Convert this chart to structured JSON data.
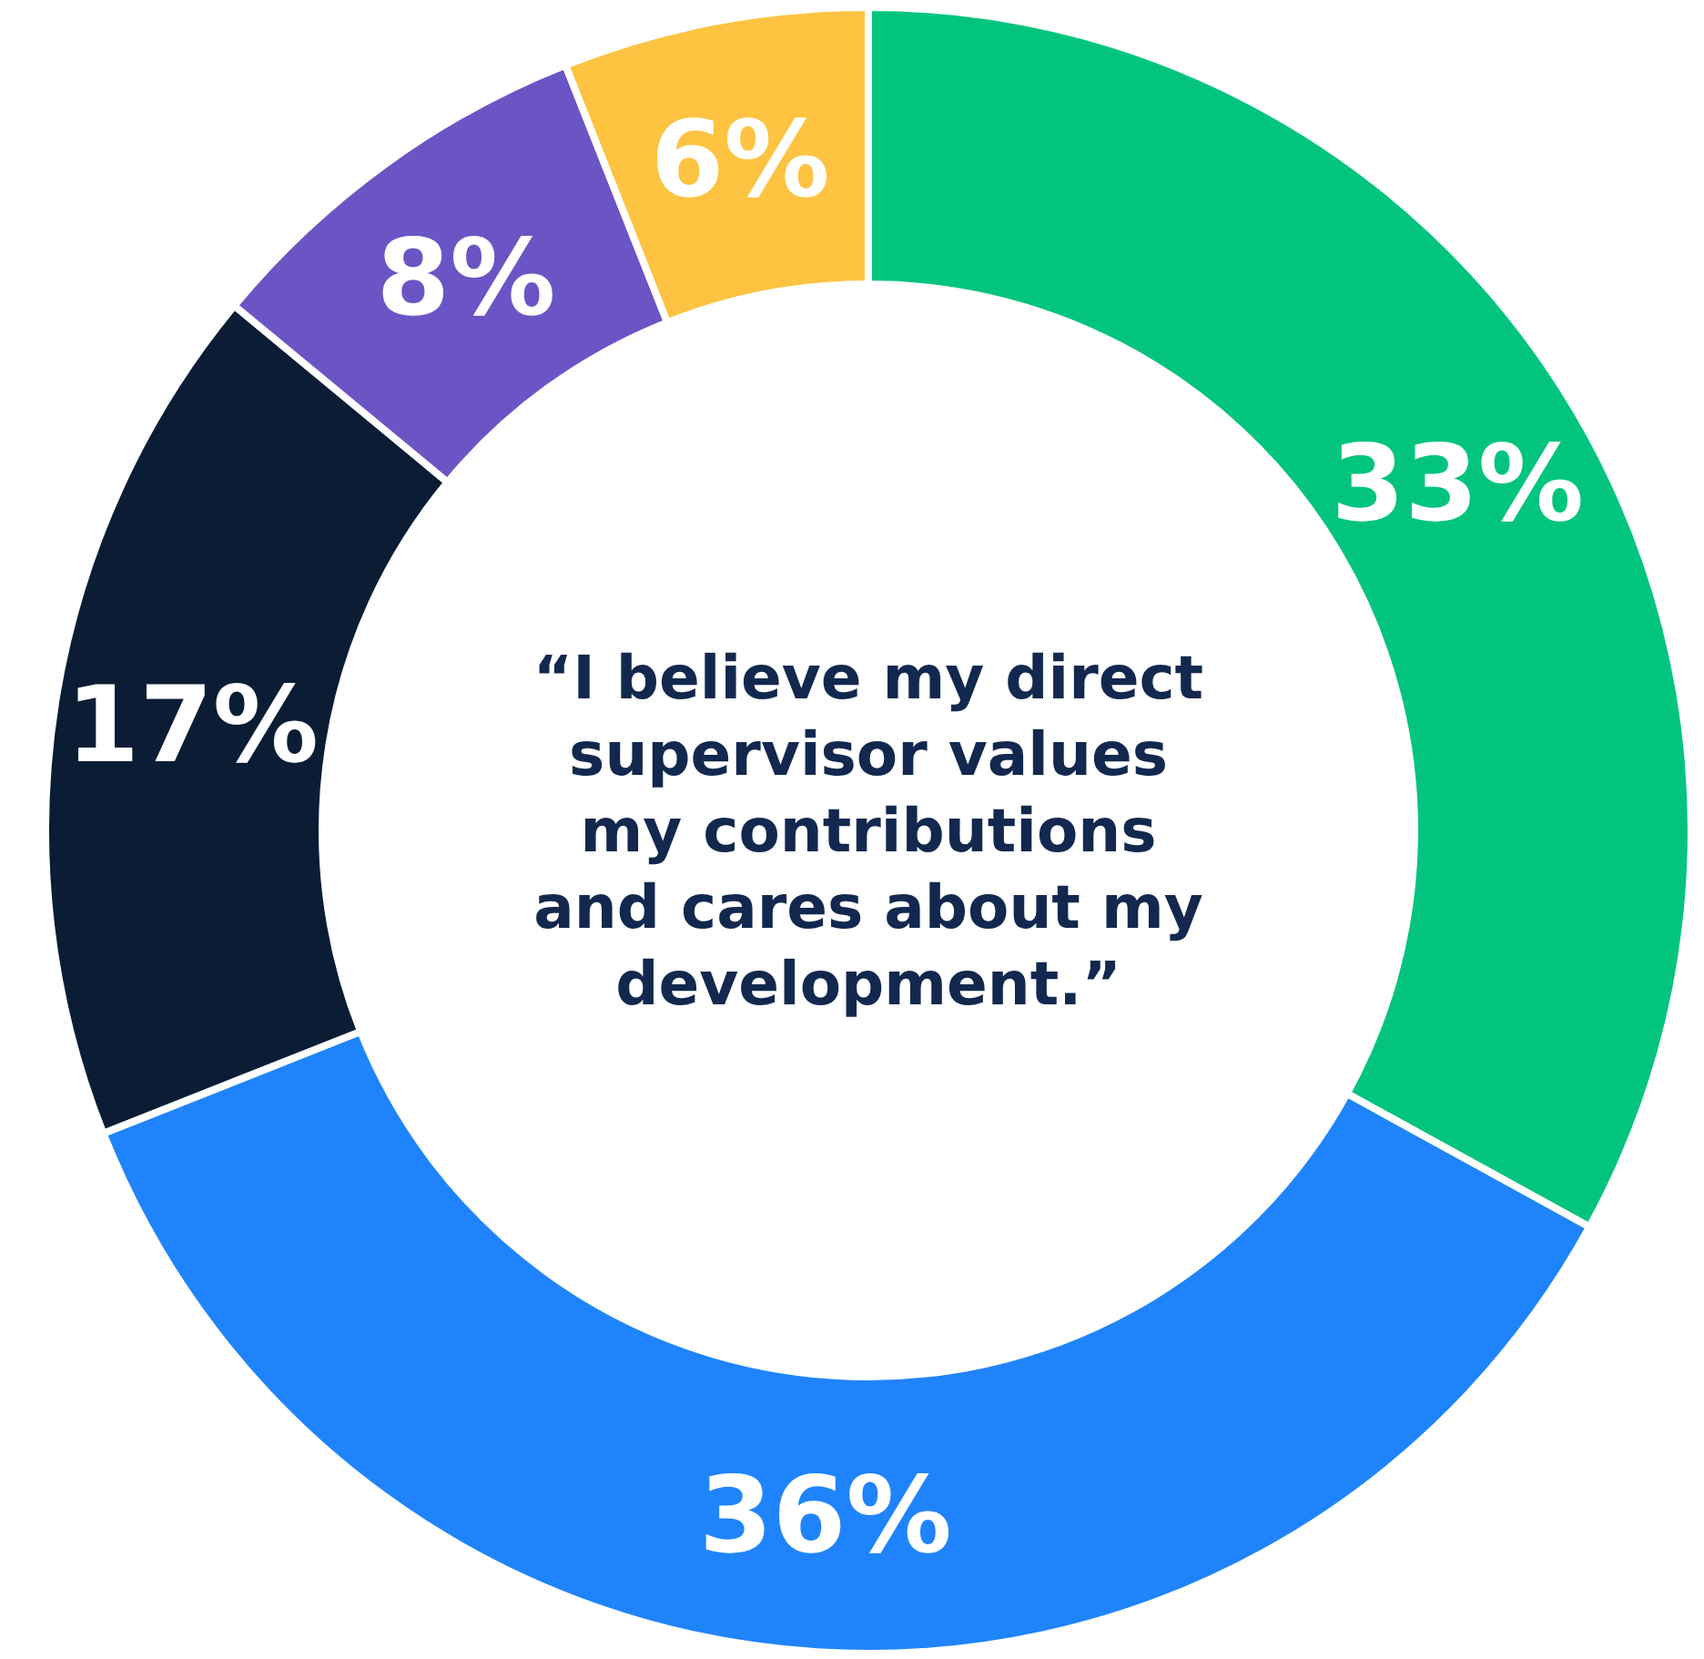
{
  "chart_data": {
    "type": "donut",
    "title": "“I believe my direct\nsupervisor values\nmy contributions\nand cares about my\ndevelopment.”",
    "categories": [
      null,
      null,
      null,
      null,
      null
    ],
    "values": [
      33,
      36,
      17,
      8,
      6
    ],
    "colors": [
      "#03c47e",
      "#1f84fb",
      "#0a1d35",
      "#6b55c4",
      "#fdc341"
    ],
    "value_labels": [
      "33%",
      "36%",
      "17%",
      "8%",
      "6%"
    ]
  }
}
